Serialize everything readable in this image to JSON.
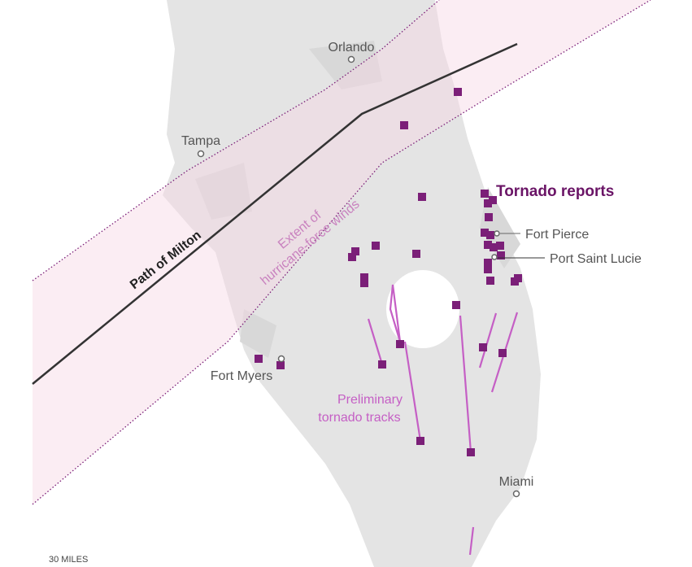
{
  "map": {
    "title": "Tornado reports",
    "path_label": "Path of Milton",
    "wind_label": [
      "Extent of",
      "hurricane-force winds"
    ],
    "tracks_label": [
      "Preliminary",
      "tornado tracks"
    ],
    "cities": [
      "Orlando",
      "Tampa",
      "Fort Pierce",
      "Port Saint Lucie",
      "Fort Myers",
      "Miami"
    ],
    "scale": "30 MILES"
  }
}
